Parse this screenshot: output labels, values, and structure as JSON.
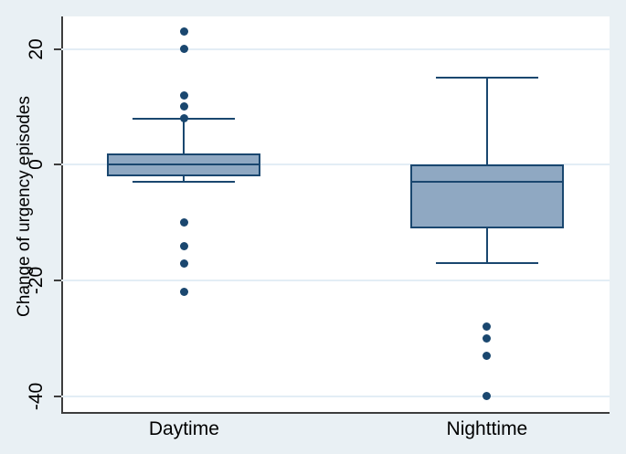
{
  "chart_data": {
    "type": "box",
    "title": "",
    "ylabel": "Change of urgency episodes",
    "xlabel": "",
    "yticks": [
      20,
      0,
      -20,
      -40
    ],
    "ylim": [
      -43,
      25.6
    ],
    "grid": true,
    "legend": "none",
    "categories": [
      "Daytime",
      "Nighttime"
    ],
    "series": [
      {
        "name": "Daytime",
        "x_frac": 0.224,
        "q1": -2,
        "median": 0,
        "q3": 2,
        "whisker_low": -3,
        "whisker_high": 8,
        "outliers": [
          23,
          20,
          12,
          10,
          8,
          -10,
          -14,
          -17,
          -22
        ]
      },
      {
        "name": "Nighttime",
        "x_frac": 0.7765,
        "q1": -11,
        "median": -3,
        "q3": 0,
        "whisker_low": -17,
        "whisker_high": 15,
        "outliers": [
          -28,
          -30,
          -33,
          -40
        ]
      }
    ]
  },
  "colors": {
    "background": "#e9f0f4",
    "plot_background": "#ffffff",
    "gridline": "#e3edf5",
    "axis": "#3d3d3d",
    "box_fill": "#8fa8c2",
    "box_border": "#1a476f",
    "median": "#1a476f",
    "outlier": "#1a476f",
    "text": "#000000"
  }
}
